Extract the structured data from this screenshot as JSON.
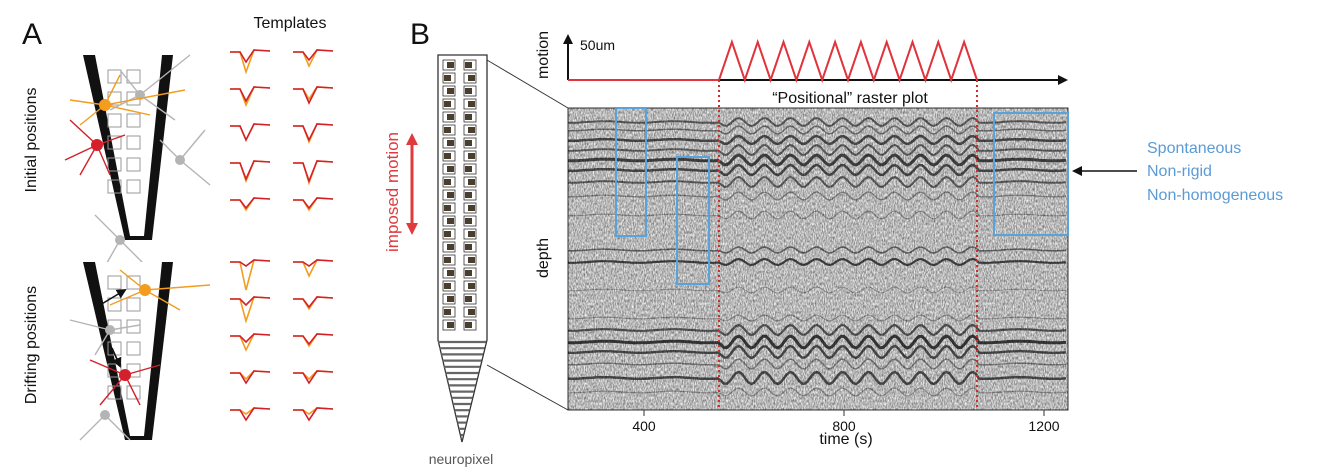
{
  "panel_a": {
    "label": "A",
    "templates_title": "Templates",
    "row_labels": {
      "initial": "Initial positions",
      "drifting": "Drifting positions"
    }
  },
  "panel_b": {
    "label": "B",
    "probe_caption": "neuropixel",
    "imposed_motion_label": "imposed motion",
    "motion_axis_label": "motion",
    "scale_bar_label": "50um",
    "raster_title": "“Positional” raster plot",
    "y_axis_label": "depth",
    "x_axis_label": "time (s)",
    "x_ticks": [
      "400",
      "800",
      "1200"
    ],
    "annotations": [
      "Spontaneous",
      "Non-rigid",
      "Non-homogeneous"
    ]
  },
  "colors": {
    "orange_neuron": "#f39c1e",
    "red_neuron": "#d3202a",
    "grey_neuron": "#b4b4b4",
    "motion_trace": "#e0333b",
    "highlight_box": "#59a3dc",
    "annotation_text": "#5b9bd5",
    "imposed_motion": "#e03a3e"
  }
}
